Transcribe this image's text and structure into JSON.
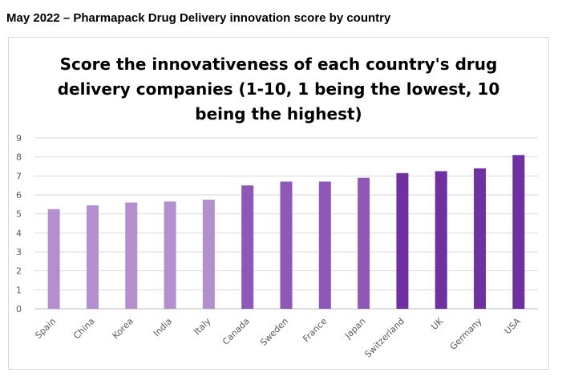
{
  "page": {
    "heading": "May 2022 – Pharmapack Drug Delivery innovation score by country"
  },
  "chart_data": {
    "type": "bar",
    "title_lines": [
      "Score the innovativeness of each country's drug",
      "delivery companies (1-10, 1 being the lowest, 10",
      "being the highest)"
    ],
    "categories": [
      "Spain",
      "China",
      "Korea",
      "India",
      "Italy",
      "Canada",
      "Sweden",
      "France",
      "Japan",
      "Switzerland",
      "UK",
      "Germany",
      "USA"
    ],
    "values": [
      5.25,
      5.45,
      5.6,
      5.65,
      5.75,
      6.5,
      6.7,
      6.7,
      6.9,
      7.15,
      7.25,
      7.4,
      8.1
    ],
    "ylim": [
      0,
      9
    ],
    "yticks": [
      "0",
      "1",
      "2",
      "3",
      "4",
      "5",
      "6",
      "7",
      "8",
      "9"
    ],
    "grid": true,
    "bar_colors": [
      "#b48fd0",
      "#b48fd0",
      "#b48fd0",
      "#b48fd0",
      "#b48fd0",
      "#8e57b8",
      "#8e57b8",
      "#8e57b8",
      "#8e57b8",
      "#7030a0",
      "#7030a0",
      "#7030a0",
      "#7030a0"
    ]
  }
}
